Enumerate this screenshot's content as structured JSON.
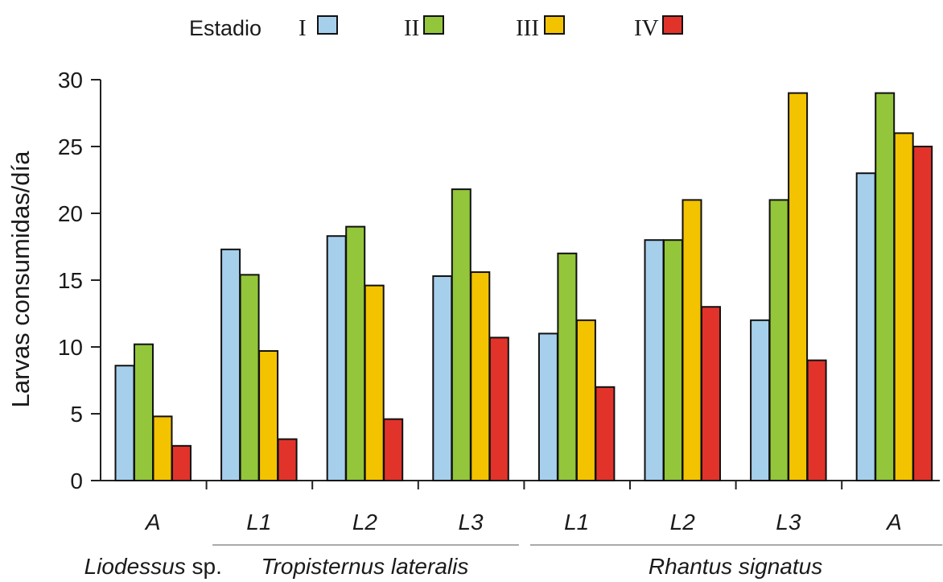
{
  "chart_data": {
    "type": "bar",
    "ylabel": "Larvas consumidas/día",
    "ylim": [
      0,
      30
    ],
    "yticks": [
      0,
      5,
      10,
      15,
      20,
      25,
      30
    ],
    "grid": false,
    "legend_position": "top",
    "legend_title": "Estadio",
    "categories": [
      "A",
      "L1",
      "L2",
      "L3",
      "L1",
      "L2",
      "L3",
      "A"
    ],
    "groups": [
      {
        "label": "Liodessus",
        "suffix": " sp.",
        "start": 0,
        "end": 0
      },
      {
        "label": "Tropisternus lateralis",
        "suffix": "",
        "start": 1,
        "end": 3
      },
      {
        "label": "Rhantus signatus",
        "suffix": "",
        "start": 4,
        "end": 7
      }
    ],
    "series": [
      {
        "name": "I",
        "color": "#a6cfec",
        "values": [
          8.6,
          17.3,
          18.3,
          15.3,
          11,
          18,
          12,
          23
        ]
      },
      {
        "name": "II",
        "color": "#93c63a",
        "values": [
          10.2,
          15.4,
          19.0,
          21.8,
          17,
          18,
          21,
          29
        ]
      },
      {
        "name": "III",
        "color": "#f4c300",
        "values": [
          4.8,
          9.7,
          14.6,
          15.6,
          12,
          21,
          29,
          26
        ]
      },
      {
        "name": "IV",
        "color": "#e2332b",
        "values": [
          2.6,
          3.1,
          4.6,
          10.7,
          7,
          13,
          9,
          25
        ]
      }
    ]
  }
}
